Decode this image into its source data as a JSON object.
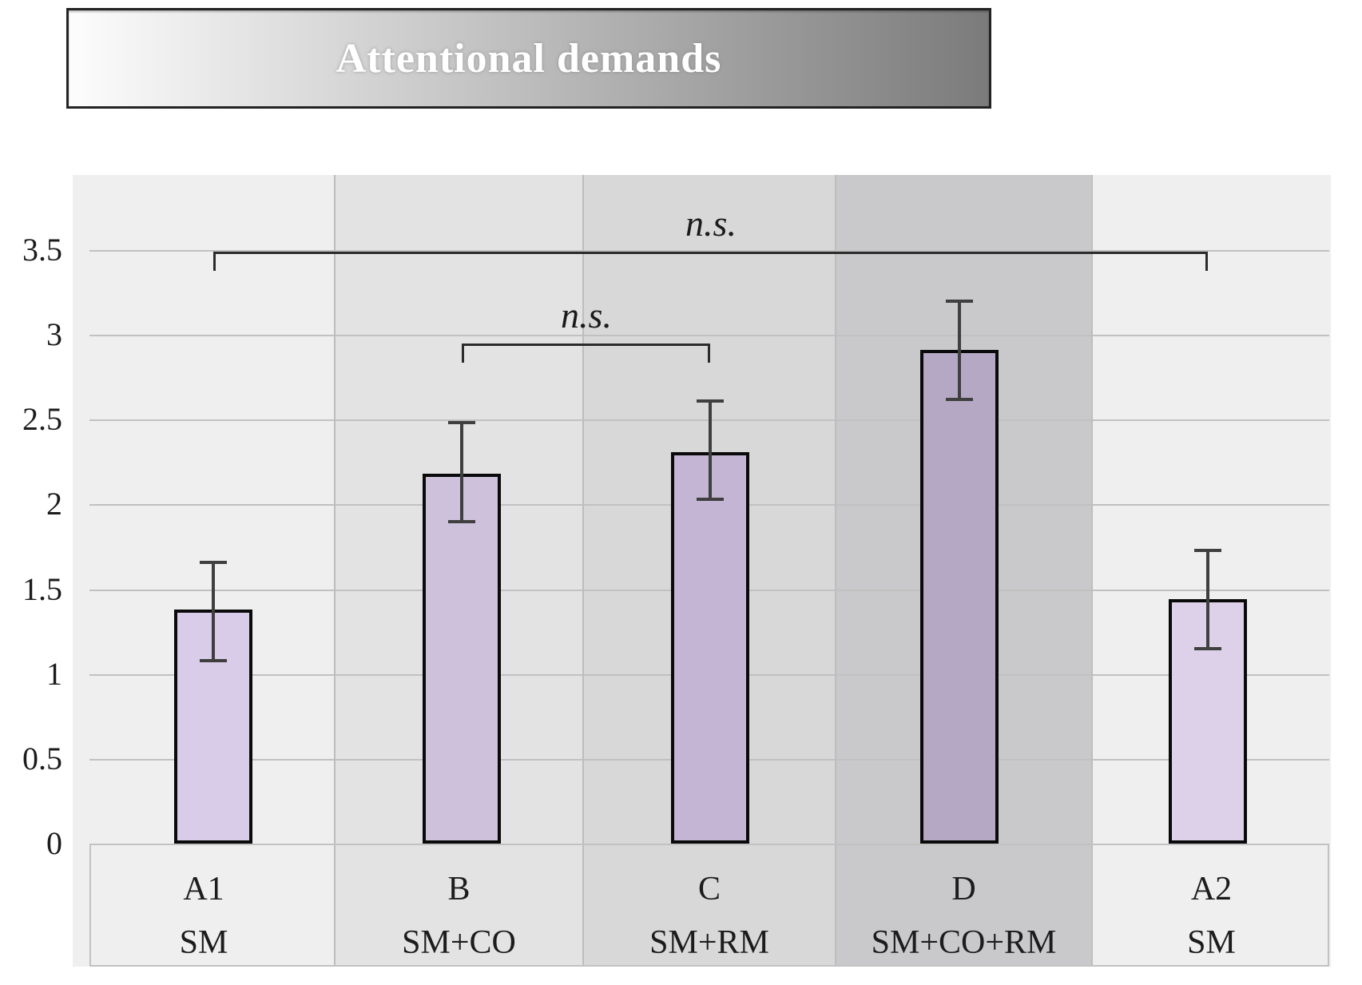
{
  "figure": {
    "title": "Attentional demands"
  },
  "chart_data": {
    "type": "bar",
    "title": "Attentional demands",
    "categories": [
      "A1",
      "B",
      "C",
      "D",
      "A2"
    ],
    "category_conditions": [
      "SM",
      "SM+CO",
      "SM+RM",
      "SM+CO+RM",
      "SM"
    ],
    "values": [
      1.38,
      2.18,
      2.31,
      2.91,
      1.44
    ],
    "error_bars": {
      "upper": [
        1.66,
        2.48,
        2.61,
        3.2,
        1.73
      ],
      "lower": [
        1.08,
        1.9,
        2.03,
        2.62,
        1.15
      ]
    },
    "ylim": [
      0,
      3.85
    ],
    "yticks": [
      0,
      0.5,
      1,
      1.5,
      2,
      2.5,
      3,
      3.5
    ],
    "grid": true,
    "legend": "none",
    "annotations": [
      {
        "text": "n.s.",
        "type": "bracket",
        "from": "A1",
        "to": "A2",
        "y": 3.49
      },
      {
        "text": "n.s.",
        "type": "bracket",
        "from": "B",
        "to": "C",
        "y": 2.95
      }
    ],
    "colors": {
      "bar_fills": [
        "#d8cce8",
        "#cdc1dc",
        "#c3b5d3",
        "#b5a8c5",
        "#dcd1e9"
      ],
      "bar_border": "#0a0a0a",
      "column_bands": [
        "#f0eff0",
        "#e4e3e4",
        "#d9d8d9",
        "#c9c8ca",
        "#f0eff0"
      ],
      "column_divider": "#bebdbe",
      "gridline": "#c2c1c2",
      "error_bar": "#3f3f3f",
      "bracket": "#2b2b2b",
      "axis_text": "#1c1c1c",
      "title_text": "#ffffff",
      "title_gradient": [
        "#fdfdfd",
        "#bcbcbc",
        "#7b7b7b"
      ]
    }
  }
}
